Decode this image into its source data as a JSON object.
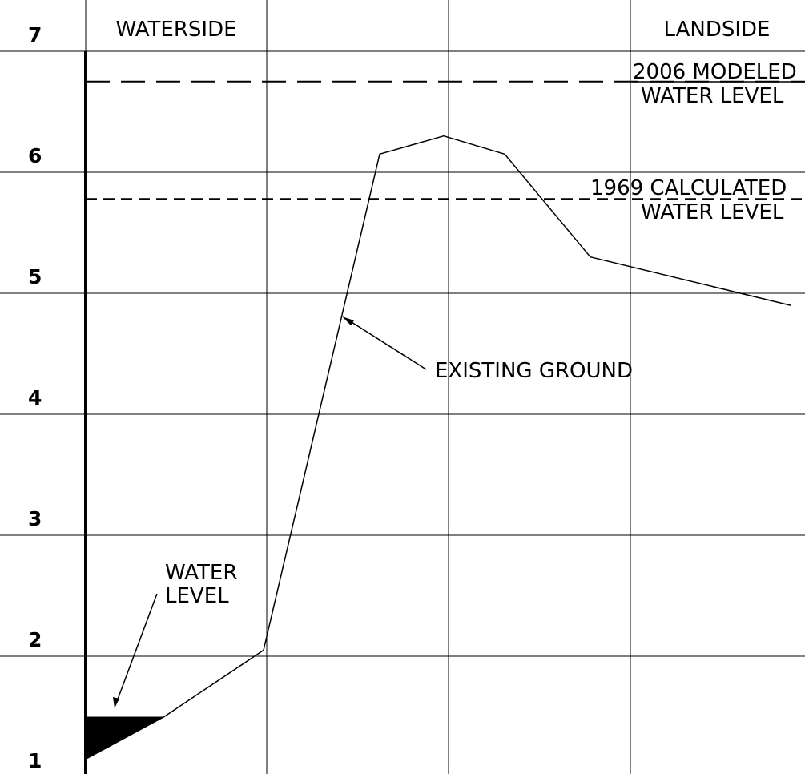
{
  "headers": {
    "waterside": "WATERSIDE",
    "landside": "LANDSIDE"
  },
  "y_ticks": [
    "7",
    "6",
    "5",
    "4",
    "3",
    "2",
    "1"
  ],
  "labels": {
    "modeled_2006_line1": "2006 MODELED",
    "modeled_2006_line2": "WATER LEVEL",
    "calculated_1969_line1": "1969 CALCULATED",
    "calculated_1969_line2": "WATER LEVEL",
    "existing_ground": "EXISTING GROUND",
    "water_level_line1": "WATER",
    "water_level_line2": "LEVEL"
  },
  "elevations": {
    "modeled_2006": 6.75,
    "calculated_1969": 5.78,
    "water_level": 1.5
  },
  "ground_profile": [
    {
      "elevation": 1.15
    },
    {
      "elevation": 1.5
    },
    {
      "elevation": 2.05
    },
    {
      "elevation": 6.15
    },
    {
      "elevation": 6.3
    },
    {
      "elevation": 6.15
    },
    {
      "elevation": 5.3
    },
    {
      "elevation": 4.9
    }
  ]
}
